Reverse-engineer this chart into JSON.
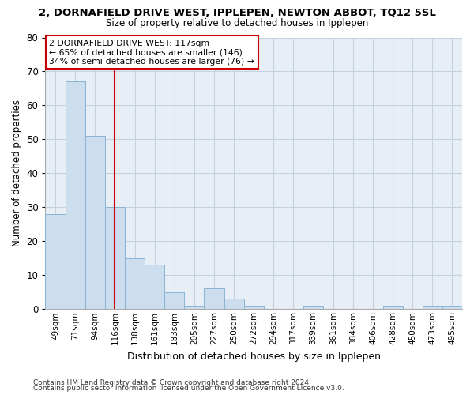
{
  "title": "2, DORNAFIELD DRIVE WEST, IPPLEPEN, NEWTON ABBOT, TQ12 5SL",
  "subtitle": "Size of property relative to detached houses in Ipplepen",
  "xlabel": "Distribution of detached houses by size in Ipplepen",
  "ylabel": "Number of detached properties",
  "bar_labels": [
    "49sqm",
    "71sqm",
    "94sqm",
    "116sqm",
    "138sqm",
    "161sqm",
    "183sqm",
    "205sqm",
    "227sqm",
    "250sqm",
    "272sqm",
    "294sqm",
    "317sqm",
    "339sqm",
    "361sqm",
    "384sqm",
    "406sqm",
    "428sqm",
    "450sqm",
    "473sqm",
    "495sqm"
  ],
  "bar_heights": [
    28,
    67,
    51,
    30,
    15,
    13,
    5,
    1,
    6,
    3,
    1,
    0,
    0,
    1,
    0,
    0,
    0,
    1,
    0,
    1,
    1
  ],
  "bar_color": "#ccdded",
  "bar_edgecolor": "#8ab4d4",
  "ylim": [
    0,
    80
  ],
  "yticks": [
    0,
    10,
    20,
    30,
    40,
    50,
    60,
    70,
    80
  ],
  "vline_index": 3,
  "vline_color": "#cc0000",
  "annotation_text": "2 DORNAFIELD DRIVE WEST: 117sqm\n← 65% of detached houses are smaller (146)\n34% of semi-detached houses are larger (76) →",
  "annotation_box_edgecolor": "#cc0000",
  "footnote1": "Contains HM Land Registry data © Crown copyright and database right 2024.",
  "footnote2": "Contains public sector information licensed under the Open Government Licence v3.0.",
  "grid_color": "#c5d0e0",
  "background_color": "#e8eef6"
}
